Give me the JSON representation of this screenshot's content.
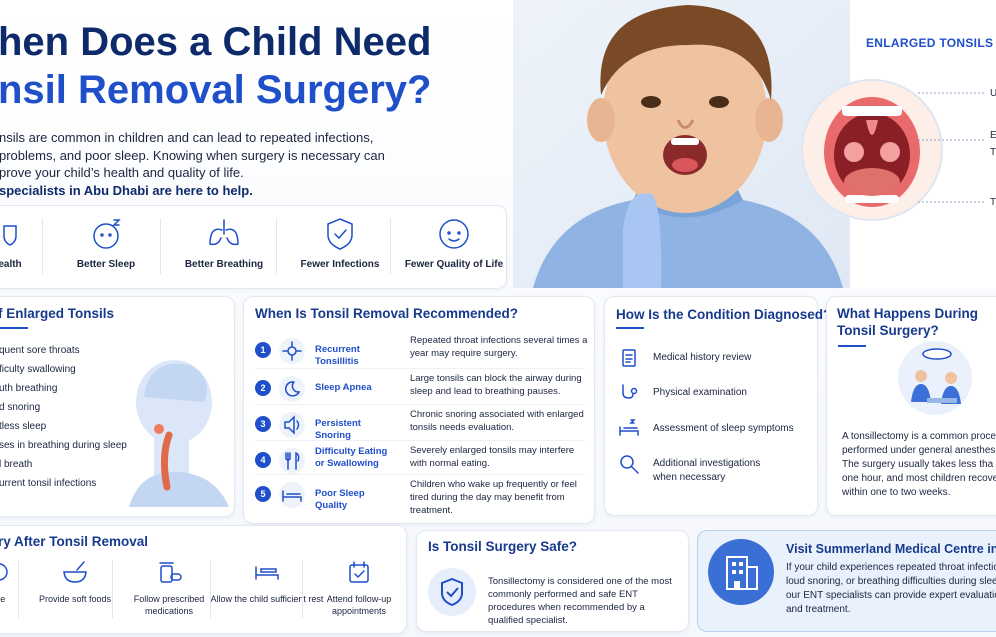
{
  "header": {
    "title_lines": [
      "hen Does a Child Need",
      "nsil Removal Surgery?"
    ],
    "intro_lines": [
      "nsils are common in children and can lead to repeated infections,",
      "problems, and poor sleep. Knowing when surgery is necessary can",
      "prove your child’s health and quality of life."
    ],
    "intro_emphasis": "specialists in Abu Dhabi are here to help."
  },
  "benefits": [
    "ealth",
    "Better Sleep",
    "Better Breathing",
    "Fewer Infections",
    "Fewer Quality of Life"
  ],
  "diagram": {
    "title": "ENLARGED TONSILS",
    "labels": [
      "U",
      "E",
      "T",
      "T"
    ]
  },
  "symptoms": {
    "title": "f Enlarged Tonsils",
    "items": [
      "quent sore throats",
      "ficulty swallowing",
      "uth breathing",
      "d snoring",
      "tless sleep",
      "ses in breathing during sleep",
      "l breath",
      "urrent tonsil infections"
    ]
  },
  "recommended": {
    "title": "When Is Tonsil Removal Recommended?",
    "items": [
      {
        "number": "1",
        "name": "Recurrent Tonsillitis",
        "description": "Repeated throat infections several times a year may require surgery."
      },
      {
        "number": "2",
        "name": "Sleep Apnea",
        "description": "Large tonsils can block the airway during sleep and lead to breathing pauses."
      },
      {
        "number": "3",
        "name": "Persistent Snoring",
        "description": "Chronic snoring associated with enlarged tonsils needs evaluation."
      },
      {
        "number": "4",
        "name": "Difficulty Eating or Swallowing",
        "description": "Severely enlarged tonsils may interfere with normal eating."
      },
      {
        "number": "5",
        "name": "Poor Sleep Quality",
        "description": "Children who wake up frequently or feel tired during the day may benefit from treatment."
      }
    ]
  },
  "diagnosis": {
    "title": "How Is the Condition Diagnosed?",
    "items": [
      "Medical history review",
      "Physical examination",
      "Assessment of sleep symptoms",
      "Additional investigations when necessary"
    ]
  },
  "surgery": {
    "title_lines": [
      "What Happens During",
      "Tonsil Surgery?"
    ],
    "text_lines": [
      "A tonsillectomy is a common proced",
      "performed under general anesthes",
      "The surgery usually takes less tha",
      "one hour, and most children recove",
      "within one to two weeks."
    ]
  },
  "recovery": {
    "title": "ry After Tonsil Removal",
    "items": [
      "ate",
      "Provide soft foods",
      "Follow prescribed medications",
      "Allow the child sufficient rest",
      "Attend follow-up appointments"
    ]
  },
  "safety": {
    "title": "Is Tonsil Surgery Safe?",
    "text": "Tonsillectomy is considered one of the most commonly performed and safe ENT procedures when recommended by a qualified specialist."
  },
  "visit": {
    "title": "Visit Summerland Medical Centre in Abu",
    "text_lines": [
      "If your child experiences repeated throat infectio",
      "loud snoring, or breathing difficulties during slee",
      "our ENT specialists can provide expert evaluatio",
      "and treatment."
    ]
  }
}
